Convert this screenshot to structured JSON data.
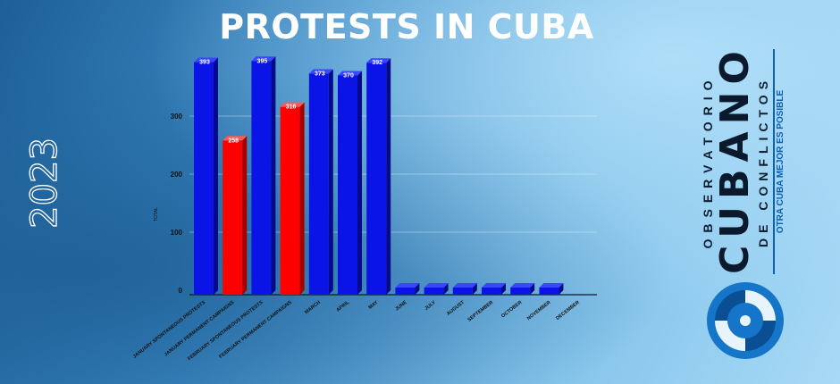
{
  "title": "PROTESTS IN CUBA",
  "year": "2023",
  "brand": {
    "line1": "OBSERVATORIO",
    "line2": "CUBANO",
    "line3": "DE CONFLICTOS",
    "tagline": "OTRA CUBA MEJOR ES POSIBLE",
    "logo_icon": "observatorio-logo-icon"
  },
  "colors": {
    "blue_bar": "#0a14e6",
    "red_bar": "#ff0000"
  },
  "chart_data": {
    "type": "bar",
    "title": "PROTESTS IN CUBA",
    "ylabel": "TOTAL",
    "xlabel": "",
    "ylim": [
      0,
      400
    ],
    "yticks": [
      "0",
      "100",
      "200",
      "300"
    ],
    "grid": true,
    "categories": [
      "JANUARY SPONTANEOUS PROTESTS",
      "JANUARY PERMANENT CAMPAIGNS",
      "FEBRUARY SPONTANEOUS PROTESTS",
      "FEBRUARY PERMANENT CAMPAIGNS",
      "MARCH",
      "APRIL",
      "MAY",
      "JUNE",
      "JULY",
      "AUGUST",
      "SEPTEMBER",
      "OCTOBER",
      "NOVEMBER",
      "DECEMBER"
    ],
    "values": [
      393,
      258,
      395,
      316,
      373,
      370,
      392,
      0,
      0,
      0,
      0,
      0,
      0,
      null
    ],
    "labels": [
      "393",
      "258",
      "395",
      "316",
      "373",
      "370",
      "392",
      "",
      "",
      "",
      "",
      "",
      "",
      ""
    ],
    "bar_colors": [
      "blue",
      "red",
      "blue",
      "red",
      "blue",
      "blue",
      "blue",
      "blue",
      "blue",
      "blue",
      "blue",
      "blue",
      "blue",
      "blue"
    ]
  }
}
